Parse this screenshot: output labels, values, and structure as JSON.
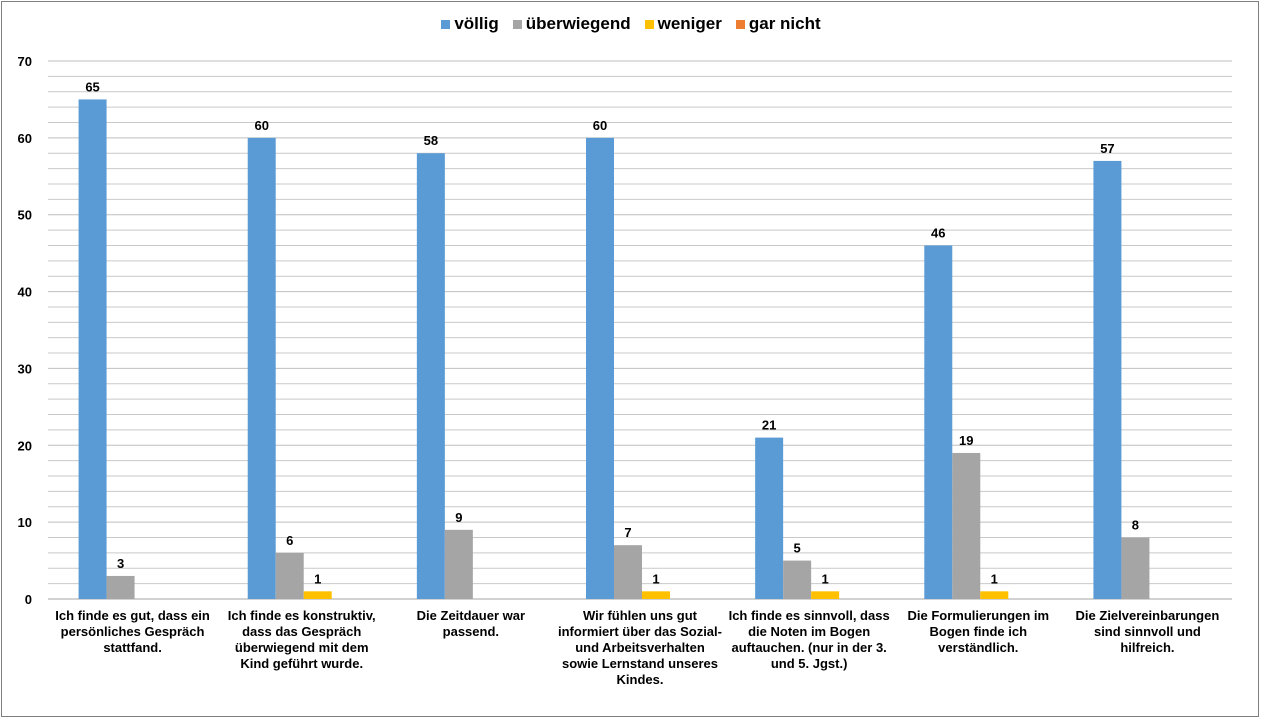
{
  "chart_data": {
    "type": "bar",
    "categories": [
      "Ich finde es gut, dass ein persönliches Gespräch stattfand.",
      "Ich finde es konstruktiv, dass das Gespräch überwiegend mit dem Kind geführt wurde.",
      "Die Zeitdauer war passend.",
      "Wir fühlen uns gut informiert über das Sozial- und Arbeitsverhalten sowie Lernstand unseres Kindes.",
      "Ich finde es sinnvoll, dass die Noten im Bogen auftauchen. (nur in der 3. und 5. Jgst.)",
      "Die Formulierungen im Bogen finde ich verständlich.",
      "Die Zielvereinbarungen sind sinnvoll und hilfreich."
    ],
    "series": [
      {
        "name": "völlig",
        "color": "#5b9bd5",
        "values": [
          65,
          60,
          58,
          60,
          21,
          46,
          57
        ]
      },
      {
        "name": "überwiegend",
        "color": "#a5a5a5",
        "values": [
          3,
          6,
          9,
          7,
          5,
          19,
          8
        ]
      },
      {
        "name": "weniger",
        "color": "#ffc000",
        "values": [
          0,
          1,
          0,
          1,
          1,
          1,
          0
        ]
      },
      {
        "name": "gar nicht",
        "color": "#ed7d31",
        "values": [
          0,
          0,
          0,
          0,
          0,
          0,
          0
        ]
      }
    ],
    "ylim": [
      0,
      70
    ],
    "yticks": [
      0,
      10,
      20,
      30,
      40,
      50,
      60,
      70
    ],
    "minor_grid_step": 2,
    "legend_position": "top-center",
    "grid": true
  }
}
